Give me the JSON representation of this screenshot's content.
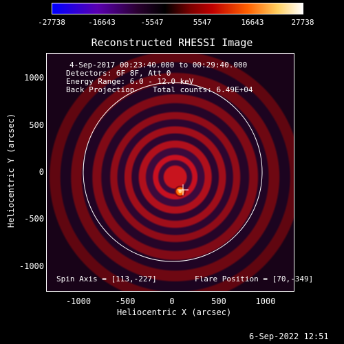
{
  "colorbar": {
    "ticks": [
      "-27738",
      "-16643",
      "-5547",
      "5547",
      "16643",
      "27738"
    ],
    "colors": [
      "#0000ff",
      "#5a00b0",
      "#2a0030",
      "#000000",
      "#c00000",
      "#ff8000",
      "#ffff80",
      "#ffffff"
    ]
  },
  "title": "Reconstructed RHESSI Image",
  "info": {
    "line1": "4-Sep-2017 00:23:40.000 to 00:29:40.000",
    "line2": "Detectors: 6F 8F, Att 0",
    "line3": "Energy Range: 6.0 - 12.0 keV",
    "line4": "Back Projection    Total counts: 6.49E+04",
    "spin": "Spin Axis = [113,-227]",
    "flare": "Flare Position = [70,-349]"
  },
  "axes": {
    "xlabel": "Heliocentric X (arcsec)",
    "ylabel": "Heliocentric Y (arcsec)",
    "xticks": [
      "-1000",
      "-500",
      "0",
      "500",
      "1000"
    ],
    "yticks": [
      "1000",
      "500",
      "0",
      "-500",
      "-1000"
    ]
  },
  "timestamp": "6-Sep-2022 12:51"
}
